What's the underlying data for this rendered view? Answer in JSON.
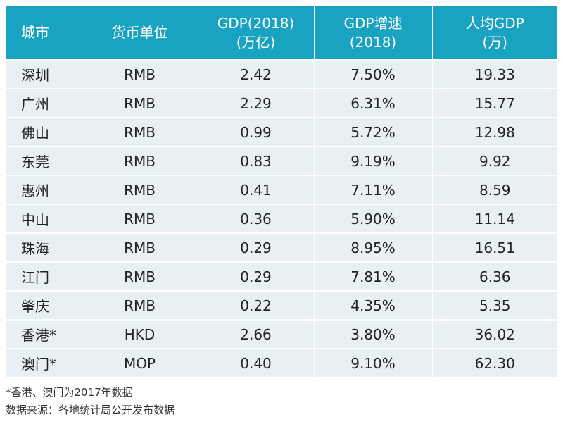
{
  "headers": {
    "city": "城市",
    "currency": "货币单位",
    "gdp_line1": "GDP(2018)",
    "gdp_line2": "(万亿)",
    "growth_line1": "GDP增速",
    "growth_line2": "(2018)",
    "per_capita_line1": "人均GDP",
    "per_capita_line2": "(万)"
  },
  "rows": [
    {
      "city": "深圳",
      "currency": "RMB",
      "gdp": "2.42",
      "growth": "7.50%",
      "per_capita": "19.33"
    },
    {
      "city": "广州",
      "currency": "RMB",
      "gdp": "2.29",
      "growth": "6.31%",
      "per_capita": "15.77"
    },
    {
      "city": "佛山",
      "currency": "RMB",
      "gdp": "0.99",
      "growth": "5.72%",
      "per_capita": "12.98"
    },
    {
      "city": "东莞",
      "currency": "RMB",
      "gdp": "0.83",
      "growth": "9.19%",
      "per_capita": "9.92"
    },
    {
      "city": "惠州",
      "currency": "RMB",
      "gdp": "0.41",
      "growth": "7.11%",
      "per_capita": "8.59"
    },
    {
      "city": "中山",
      "currency": "RMB",
      "gdp": "0.36",
      "growth": "5.90%",
      "per_capita": "11.14"
    },
    {
      "city": "珠海",
      "currency": "RMB",
      "gdp": "0.29",
      "growth": "8.95%",
      "per_capita": "16.51"
    },
    {
      "city": "江门",
      "currency": "RMB",
      "gdp": "0.29",
      "growth": "7.81%",
      "per_capita": "6.36"
    },
    {
      "city": "肇庆",
      "currency": "RMB",
      "gdp": "0.22",
      "growth": "4.35%",
      "per_capita": "5.35"
    },
    {
      "city": "香港*",
      "currency": "HKD",
      "gdp": "2.66",
      "growth": "3.80%",
      "per_capita": "36.02"
    },
    {
      "city": "澳门*",
      "currency": "MOP",
      "gdp": "0.40",
      "growth": "9.10%",
      "per_capita": "62.30"
    }
  ],
  "notes": {
    "footnote": "*香港、澳门为2017年数据",
    "source": "数据来源：各地统计局公开发布数据"
  },
  "colors": {
    "header_bg": "#1aa3c0",
    "row_bg": "#e9f0f3"
  }
}
